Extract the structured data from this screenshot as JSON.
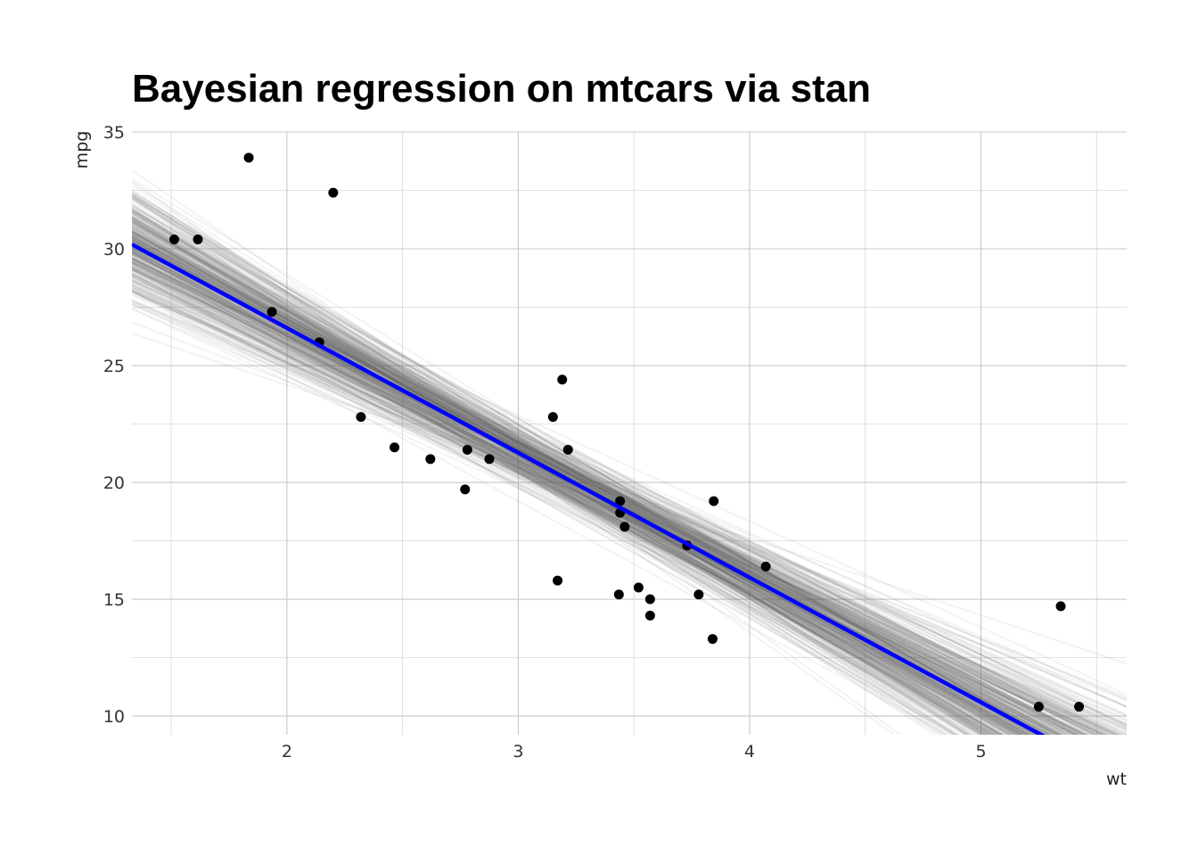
{
  "chart_data": {
    "type": "scatter",
    "title": "Bayesian regression on mtcars via stan",
    "xlabel": "wt",
    "ylabel": "mpg",
    "xlim": [
      1.33,
      5.63
    ],
    "ylim": [
      9.2,
      35.0
    ],
    "x_ticks": [
      2,
      3,
      4,
      5
    ],
    "y_ticks": [
      10,
      15,
      20,
      25,
      30,
      35
    ],
    "x_tick_labels": [
      "2",
      "3",
      "4",
      "5"
    ],
    "y_tick_labels": [
      "10",
      "15",
      "20",
      "25",
      "30",
      "35"
    ],
    "grid": true,
    "points": [
      {
        "x": 1.513,
        "y": 30.4
      },
      {
        "x": 1.615,
        "y": 30.4
      },
      {
        "x": 1.835,
        "y": 33.9
      },
      {
        "x": 1.935,
        "y": 27.3
      },
      {
        "x": 2.14,
        "y": 26.0
      },
      {
        "x": 2.2,
        "y": 32.4
      },
      {
        "x": 2.32,
        "y": 22.8
      },
      {
        "x": 2.465,
        "y": 21.5
      },
      {
        "x": 2.62,
        "y": 21.0
      },
      {
        "x": 2.77,
        "y": 19.7
      },
      {
        "x": 2.78,
        "y": 21.4
      },
      {
        "x": 2.875,
        "y": 21.0
      },
      {
        "x": 3.15,
        "y": 22.8
      },
      {
        "x": 3.17,
        "y": 15.8
      },
      {
        "x": 3.19,
        "y": 24.4
      },
      {
        "x": 3.215,
        "y": 21.4
      },
      {
        "x": 3.435,
        "y": 15.2
      },
      {
        "x": 3.44,
        "y": 18.7
      },
      {
        "x": 3.44,
        "y": 19.2
      },
      {
        "x": 3.46,
        "y": 18.1
      },
      {
        "x": 3.52,
        "y": 15.5
      },
      {
        "x": 3.57,
        "y": 15.0
      },
      {
        "x": 3.57,
        "y": 14.3
      },
      {
        "x": 3.73,
        "y": 17.3
      },
      {
        "x": 3.78,
        "y": 15.2
      },
      {
        "x": 3.84,
        "y": 13.3
      },
      {
        "x": 3.845,
        "y": 19.2
      },
      {
        "x": 4.07,
        "y": 16.4
      },
      {
        "x": 5.25,
        "y": 10.4
      },
      {
        "x": 5.345,
        "y": 14.7
      },
      {
        "x": 5.424,
        "y": 10.4
      }
    ],
    "fit_line": {
      "intercept": 37.29,
      "slope": -5.34
    },
    "posterior_band": {
      "intercept_mean": 37.29,
      "intercept_sd": 1.88,
      "slope_mean": -5.34,
      "slope_sd": 0.56,
      "correlation": -0.95,
      "draws": 400
    },
    "colors": {
      "points": "#000000",
      "fit_line": "#0000ff",
      "posterior_lines": "#6b6b6b",
      "grid": "#c8c8c8"
    }
  }
}
